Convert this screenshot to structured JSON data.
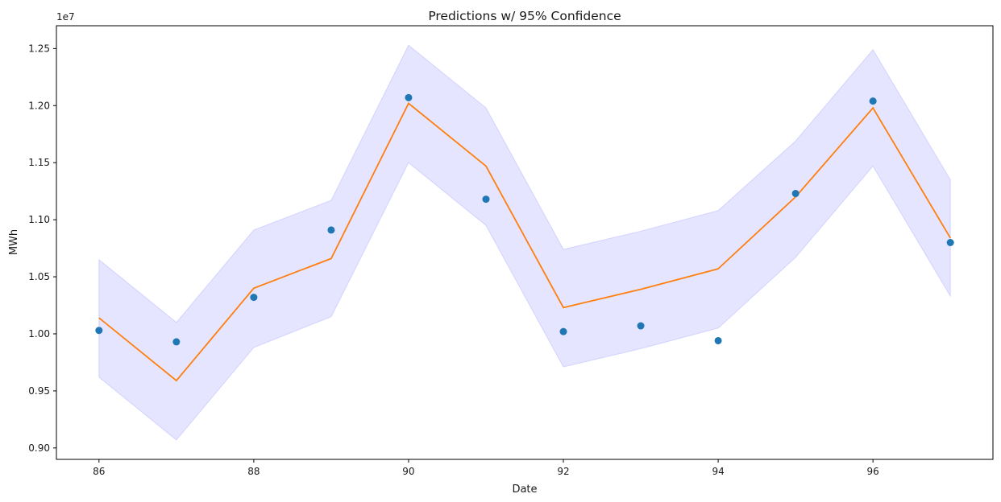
{
  "chart_data": {
    "type": "line",
    "title": "Predictions w/ 95% Confidence",
    "xlabel": "Date",
    "ylabel": "MWh",
    "y_offset_text": "1e7",
    "xlim": [
      85.45,
      97.55
    ],
    "ylim": [
      8.9,
      12.7
    ],
    "y_scale_multiplier": 10000000,
    "x_ticks": [
      86,
      88,
      90,
      92,
      94,
      96
    ],
    "x_tick_labels": [
      "86",
      "88",
      "90",
      "92",
      "94",
      "96"
    ],
    "y_ticks": [
      9.0,
      9.5,
      10.0,
      10.5,
      11.0,
      11.5,
      12.0,
      12.5
    ],
    "y_tick_labels": [
      "0.90",
      "0.95",
      "1.00",
      "1.05",
      "1.10",
      "1.15",
      "1.20",
      "1.25"
    ],
    "grid": false,
    "legend": "none",
    "x": [
      86,
      87,
      88,
      89,
      90,
      91,
      92,
      93,
      94,
      95,
      96,
      97
    ],
    "series": [
      {
        "kind": "scatter",
        "color": "#1f77b4",
        "values": [
          10.03,
          9.93,
          10.32,
          10.91,
          12.07,
          11.18,
          10.02,
          10.07,
          9.94,
          11.23,
          12.04,
          10.8
        ]
      },
      {
        "kind": "line",
        "color": "#ff7f0e",
        "values": [
          10.14,
          9.59,
          10.4,
          10.66,
          12.02,
          11.47,
          10.23,
          10.39,
          10.57,
          11.2,
          11.98,
          10.84
        ]
      },
      {
        "kind": "band",
        "color": "#7b7bff",
        "lower": [
          9.62,
          9.07,
          9.88,
          10.15,
          11.5,
          10.95,
          9.71,
          9.87,
          10.05,
          10.67,
          11.47,
          10.33
        ],
        "upper": [
          10.65,
          10.1,
          10.91,
          11.17,
          12.53,
          11.98,
          10.74,
          10.9,
          11.08,
          11.69,
          12.49,
          11.35
        ]
      }
    ]
  }
}
